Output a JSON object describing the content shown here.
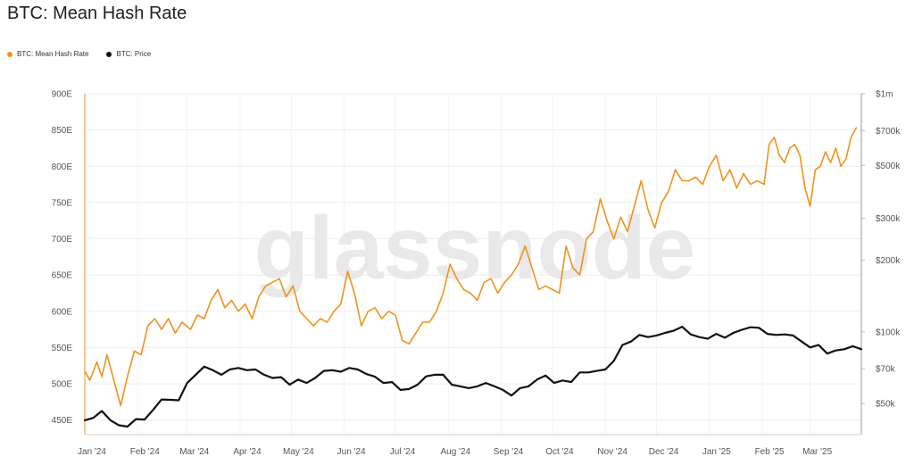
{
  "title": "BTC: Mean Hash Rate",
  "legend": [
    {
      "label": "BTC: Mean Hash Rate",
      "color": "#f0921e"
    },
    {
      "label": "BTC: Price",
      "color": "#111111"
    }
  ],
  "watermark": "glassnode",
  "chart_data": {
    "type": "line",
    "title": "BTC: Mean Hash Rate",
    "x_ticks": [
      "Jan '24",
      "Feb '24",
      "Mar '24",
      "Apr '24",
      "May '24",
      "Jun '24",
      "Jul '24",
      "Aug '24",
      "Sep '24",
      "Oct '24",
      "Nov '24",
      "Dec '24",
      "Jan '25",
      "Feb '25",
      "Mar '25"
    ],
    "x_range": [
      "2024-01-01",
      "2025-03-31"
    ],
    "left_axis": {
      "ticks": [
        "450E",
        "500E",
        "550E",
        "600E",
        "650E",
        "700E",
        "750E",
        "800E",
        "850E",
        "900E"
      ],
      "min": 430,
      "max": 900
    },
    "right_axis": {
      "scale": "log",
      "ticks": [
        {
          "label": "$1m",
          "value": 1000000
        },
        {
          "label": "$700k",
          "value": 700000
        },
        {
          "label": "$500k",
          "value": 500000
        },
        {
          "label": "$300k",
          "value": 300000
        },
        {
          "label": "$200k",
          "value": 200000
        },
        {
          "label": "$100k",
          "value": 100000
        },
        {
          "label": "$70k",
          "value": 70000
        },
        {
          "label": "$50k",
          "value": 50000
        }
      ],
      "min": 37000,
      "max": 1000000
    },
    "grid": true,
    "series": [
      {
        "name": "BTC: Mean Hash Rate",
        "axis": "left",
        "color": "#f0921e",
        "points": [
          [
            "2024-01-01",
            517
          ],
          [
            "2024-01-04",
            505
          ],
          [
            "2024-01-08",
            530
          ],
          [
            "2024-01-11",
            510
          ],
          [
            "2024-01-14",
            540
          ],
          [
            "2024-01-18",
            505
          ],
          [
            "2024-01-22",
            470
          ],
          [
            "2024-01-26",
            510
          ],
          [
            "2024-01-30",
            545
          ],
          [
            "2024-02-03",
            540
          ],
          [
            "2024-02-07",
            580
          ],
          [
            "2024-02-11",
            590
          ],
          [
            "2024-02-15",
            575
          ],
          [
            "2024-02-19",
            590
          ],
          [
            "2024-02-23",
            570
          ],
          [
            "2024-02-27",
            585
          ],
          [
            "2024-03-03",
            575
          ],
          [
            "2024-03-07",
            595
          ],
          [
            "2024-03-11",
            590
          ],
          [
            "2024-03-15",
            615
          ],
          [
            "2024-03-19",
            630
          ],
          [
            "2024-03-23",
            605
          ],
          [
            "2024-03-27",
            615
          ],
          [
            "2024-03-31",
            600
          ],
          [
            "2024-04-04",
            610
          ],
          [
            "2024-04-08",
            590
          ],
          [
            "2024-04-12",
            620
          ],
          [
            "2024-04-16",
            635
          ],
          [
            "2024-04-20",
            640
          ],
          [
            "2024-04-24",
            645
          ],
          [
            "2024-04-28",
            620
          ],
          [
            "2024-05-02",
            635
          ],
          [
            "2024-05-06",
            600
          ],
          [
            "2024-05-10",
            590
          ],
          [
            "2024-05-14",
            580
          ],
          [
            "2024-05-18",
            590
          ],
          [
            "2024-05-22",
            585
          ],
          [
            "2024-05-26",
            600
          ],
          [
            "2024-05-30",
            610
          ],
          [
            "2024-06-03",
            655
          ],
          [
            "2024-06-07",
            625
          ],
          [
            "2024-06-11",
            580
          ],
          [
            "2024-06-15",
            600
          ],
          [
            "2024-06-19",
            605
          ],
          [
            "2024-06-23",
            590
          ],
          [
            "2024-06-27",
            600
          ],
          [
            "2024-07-01",
            595
          ],
          [
            "2024-07-05",
            560
          ],
          [
            "2024-07-09",
            555
          ],
          [
            "2024-07-13",
            570
          ],
          [
            "2024-07-17",
            585
          ],
          [
            "2024-07-21",
            585
          ],
          [
            "2024-07-25",
            600
          ],
          [
            "2024-07-29",
            625
          ],
          [
            "2024-08-02",
            665
          ],
          [
            "2024-08-06",
            645
          ],
          [
            "2024-08-10",
            630
          ],
          [
            "2024-08-14",
            625
          ],
          [
            "2024-08-18",
            615
          ],
          [
            "2024-08-22",
            640
          ],
          [
            "2024-08-26",
            645
          ],
          [
            "2024-08-30",
            625
          ],
          [
            "2024-09-03",
            640
          ],
          [
            "2024-09-07",
            650
          ],
          [
            "2024-09-11",
            665
          ],
          [
            "2024-09-15",
            690
          ],
          [
            "2024-09-19",
            660
          ],
          [
            "2024-09-23",
            630
          ],
          [
            "2024-09-27",
            635
          ],
          [
            "2024-10-01",
            630
          ],
          [
            "2024-10-05",
            625
          ],
          [
            "2024-10-09",
            690
          ],
          [
            "2024-10-13",
            660
          ],
          [
            "2024-10-17",
            650
          ],
          [
            "2024-10-21",
            700
          ],
          [
            "2024-10-25",
            710
          ],
          [
            "2024-10-29",
            755
          ],
          [
            "2024-11-02",
            725
          ],
          [
            "2024-11-06",
            700
          ],
          [
            "2024-11-10",
            730
          ],
          [
            "2024-11-14",
            710
          ],
          [
            "2024-11-18",
            745
          ],
          [
            "2024-11-22",
            780
          ],
          [
            "2024-11-26",
            740
          ],
          [
            "2024-11-30",
            715
          ],
          [
            "2024-12-04",
            750
          ],
          [
            "2024-12-08",
            765
          ],
          [
            "2024-12-12",
            795
          ],
          [
            "2024-12-16",
            780
          ],
          [
            "2024-12-20",
            780
          ],
          [
            "2024-12-24",
            785
          ],
          [
            "2024-12-28",
            775
          ],
          [
            "2025-01-01",
            800
          ],
          [
            "2025-01-05",
            815
          ],
          [
            "2025-01-09",
            780
          ],
          [
            "2025-01-13",
            795
          ],
          [
            "2025-01-17",
            770
          ],
          [
            "2025-01-21",
            790
          ],
          [
            "2025-01-25",
            775
          ],
          [
            "2025-01-29",
            780
          ],
          [
            "2025-02-02",
            775
          ],
          [
            "2025-02-05",
            830
          ],
          [
            "2025-02-08",
            840
          ],
          [
            "2025-02-11",
            815
          ],
          [
            "2025-02-14",
            805
          ],
          [
            "2025-02-17",
            825
          ],
          [
            "2025-02-20",
            830
          ],
          [
            "2025-02-23",
            815
          ],
          [
            "2025-02-26",
            770
          ],
          [
            "2025-03-01",
            745
          ],
          [
            "2025-03-04",
            795
          ],
          [
            "2025-03-07",
            800
          ],
          [
            "2025-03-10",
            820
          ],
          [
            "2025-03-13",
            805
          ],
          [
            "2025-03-16",
            825
          ],
          [
            "2025-03-19",
            800
          ],
          [
            "2025-03-22",
            810
          ],
          [
            "2025-03-25",
            840
          ],
          [
            "2025-03-28",
            853
          ]
        ]
      },
      {
        "name": "BTC: Price",
        "axis": "right",
        "color": "#111111",
        "points": [
          [
            "2024-01-01",
            42500
          ],
          [
            "2024-01-06",
            43500
          ],
          [
            "2024-01-11",
            46500
          ],
          [
            "2024-01-16",
            42500
          ],
          [
            "2024-01-21",
            40500
          ],
          [
            "2024-01-26",
            40000
          ],
          [
            "2024-01-31",
            43000
          ],
          [
            "2024-02-05",
            42800
          ],
          [
            "2024-02-10",
            47000
          ],
          [
            "2024-02-15",
            52000
          ],
          [
            "2024-02-20",
            51800
          ],
          [
            "2024-02-25",
            51600
          ],
          [
            "2024-03-01",
            61000
          ],
          [
            "2024-03-06",
            66000
          ],
          [
            "2024-03-11",
            71500
          ],
          [
            "2024-03-16",
            69000
          ],
          [
            "2024-03-21",
            66000
          ],
          [
            "2024-03-26",
            69500
          ],
          [
            "2024-03-31",
            70500
          ],
          [
            "2024-04-05",
            69000
          ],
          [
            "2024-04-10",
            69500
          ],
          [
            "2024-04-15",
            66000
          ],
          [
            "2024-04-20",
            64000
          ],
          [
            "2024-04-25",
            64500
          ],
          [
            "2024-04-30",
            60000
          ],
          [
            "2024-05-05",
            63000
          ],
          [
            "2024-05-10",
            61000
          ],
          [
            "2024-05-15",
            64000
          ],
          [
            "2024-05-20",
            68500
          ],
          [
            "2024-05-25",
            69000
          ],
          [
            "2024-05-30",
            68000
          ],
          [
            "2024-06-04",
            70500
          ],
          [
            "2024-06-09",
            69500
          ],
          [
            "2024-06-14",
            66500
          ],
          [
            "2024-06-19",
            64800
          ],
          [
            "2024-06-24",
            61000
          ],
          [
            "2024-06-29",
            61500
          ],
          [
            "2024-07-04",
            57000
          ],
          [
            "2024-07-09",
            57500
          ],
          [
            "2024-07-14",
            60000
          ],
          [
            "2024-07-19",
            65000
          ],
          [
            "2024-07-24",
            66000
          ],
          [
            "2024-07-29",
            66000
          ],
          [
            "2024-08-03",
            60000
          ],
          [
            "2024-08-08",
            59000
          ],
          [
            "2024-08-13",
            58000
          ],
          [
            "2024-08-18",
            59000
          ],
          [
            "2024-08-23",
            61000
          ],
          [
            "2024-08-28",
            59000
          ],
          [
            "2024-09-02",
            57000
          ],
          [
            "2024-09-07",
            54000
          ],
          [
            "2024-09-12",
            58000
          ],
          [
            "2024-09-17",
            59000
          ],
          [
            "2024-09-22",
            63000
          ],
          [
            "2024-09-27",
            65500
          ],
          [
            "2024-10-02",
            61000
          ],
          [
            "2024-10-07",
            62500
          ],
          [
            "2024-10-12",
            61500
          ],
          [
            "2024-10-17",
            67500
          ],
          [
            "2024-10-22",
            67500
          ],
          [
            "2024-10-27",
            68500
          ],
          [
            "2024-11-01",
            69500
          ],
          [
            "2024-11-06",
            75500
          ],
          [
            "2024-11-11",
            88000
          ],
          [
            "2024-11-16",
            91000
          ],
          [
            "2024-11-21",
            97000
          ],
          [
            "2024-11-26",
            95000
          ],
          [
            "2024-12-01",
            96500
          ],
          [
            "2024-12-06",
            99000
          ],
          [
            "2024-12-11",
            101000
          ],
          [
            "2024-12-16",
            105000
          ],
          [
            "2024-12-21",
            97500
          ],
          [
            "2024-12-26",
            95000
          ],
          [
            "2024-12-31",
            93500
          ],
          [
            "2025-01-05",
            98000
          ],
          [
            "2025-01-10",
            94500
          ],
          [
            "2025-01-15",
            99000
          ],
          [
            "2025-01-20",
            102000
          ],
          [
            "2025-01-25",
            104500
          ],
          [
            "2025-01-30",
            104000
          ],
          [
            "2025-02-04",
            98000
          ],
          [
            "2025-02-09",
            97000
          ],
          [
            "2025-02-14",
            97500
          ],
          [
            "2025-02-19",
            96500
          ],
          [
            "2025-02-24",
            91000
          ],
          [
            "2025-03-01",
            86000
          ],
          [
            "2025-03-06",
            88000
          ],
          [
            "2025-03-11",
            81000
          ],
          [
            "2025-03-16",
            83500
          ],
          [
            "2025-03-21",
            84500
          ],
          [
            "2025-03-26",
            87000
          ],
          [
            "2025-03-31",
            84500
          ]
        ]
      }
    ]
  }
}
